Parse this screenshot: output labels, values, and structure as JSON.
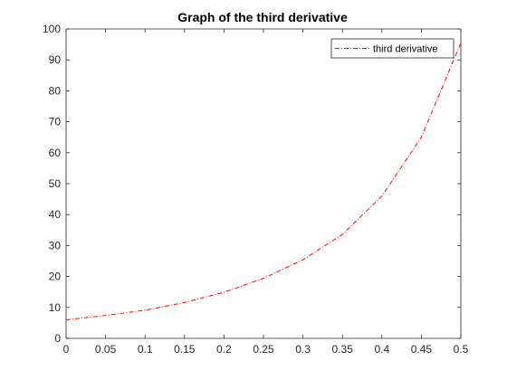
{
  "chart_data": {
    "type": "line",
    "title": "Graph of the third derivative",
    "xlabel": "",
    "ylabel": "",
    "xlim": [
      0,
      0.5
    ],
    "ylim": [
      0,
      100
    ],
    "x_ticks": [
      "0",
      "0.05",
      "0.1",
      "0.15",
      "0.2",
      "0.25",
      "0.3",
      "0.35",
      "0.4",
      "0.45",
      "0.5"
    ],
    "y_ticks": [
      "0",
      "10",
      "20",
      "30",
      "40",
      "50",
      "60",
      "70",
      "80",
      "90",
      "100"
    ],
    "grid": false,
    "legend_position": "top-right",
    "series": [
      {
        "name": "third derivative",
        "color": "#ff0000",
        "line_style": "dash-dot",
        "x": [
          0,
          0.05,
          0.1,
          0.15,
          0.2,
          0.25,
          0.3,
          0.35,
          0.4,
          0.45,
          0.5
        ],
        "y": [
          6.0,
          7.4,
          9.1,
          11.6,
          14.9,
          19.4,
          25.4,
          33.6,
          46.0,
          65.0,
          95.5
        ]
      }
    ]
  }
}
